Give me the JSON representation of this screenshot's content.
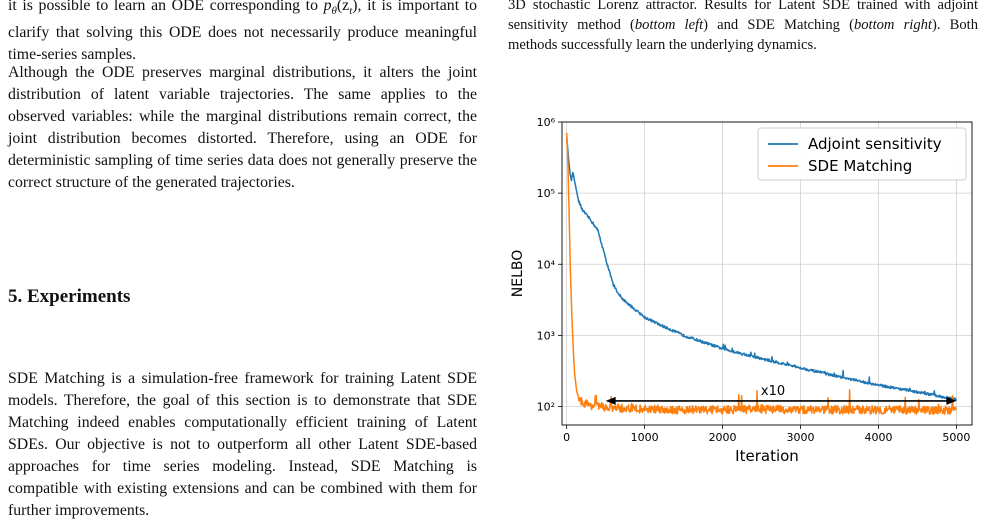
{
  "left_column": {
    "para1_prefix": "it is possible to learn an ODE corresponding to ",
    "para1_math": "p",
    "para1_math_sub": "θ",
    "para1_math_arg": "(z",
    "para1_math_arg_sub": "t",
    "para1_math_close": ")",
    "para1_suffix": ", it is important to clarify that solving this ODE does not necessarily produce meaningful time-series samples.",
    "para2": "Although the ODE preserves marginal distributions, it alters the joint distribution of latent variable trajectories. The same applies to the observed variables: while the marginal distributions remain correct, the joint distribution becomes distorted. Therefore, using an ODE for deterministic sampling of time series data does not generally preserve the correct structure of the generated trajectories.",
    "heading": "5. Experiments",
    "para3": "SDE Matching is a simulation-free framework for training Latent SDE models. Therefore, the goal of this section is to demonstrate that SDE Matching indeed enables computationally efficient training of Latent SDEs. Our objective is not to outperform all other Latent SDE-based approaches for time series modeling. Instead, SDE Matching is compatible with existing extensions and can be combined with them for further improvements."
  },
  "caption": {
    "part1": "3D stochastic Lorenz attractor. Results for Latent SDE trained with adjoint sensitivity method (",
    "em1": "bottom left",
    "part2": ") and SDE Matching (",
    "em2": "bottom right",
    "part3": "). Both methods successfully learn the underlying dynamics."
  },
  "chart_data": {
    "type": "line",
    "xlabel": "Iteration",
    "ylabel": "NELBO",
    "xlim": [
      -60,
      5200
    ],
    "ylim": [
      55,
      1000000
    ],
    "yscale": "log",
    "grid": true,
    "legend_position": "top-right",
    "x_ticks": [
      0,
      1000,
      2000,
      3000,
      4000,
      5000
    ],
    "x_tick_labels": [
      "0",
      "1000",
      "2000",
      "3000",
      "4000",
      "5000"
    ],
    "y_ticks": [
      100,
      1000,
      10000,
      100000,
      1000000
    ],
    "y_tick_labels": [
      "10²",
      "10³",
      "10⁴",
      "10⁵",
      "10⁶"
    ],
    "series": [
      {
        "name": "Adjoint sensitivity",
        "color": "#1f77b4",
        "x": [
          0,
          20,
          40,
          60,
          80,
          100,
          150,
          200,
          300,
          400,
          500,
          600,
          700,
          800,
          1000,
          1200,
          1500,
          2000,
          2500,
          3000,
          3500,
          4000,
          4500,
          5000
        ],
        "y": [
          620000,
          350000,
          200000,
          150000,
          200000,
          150000,
          80000,
          58000,
          43000,
          30000,
          12000,
          5000,
          3400,
          2700,
          1800,
          1400,
          1000,
          650,
          470,
          350,
          260,
          200,
          160,
          125
        ]
      },
      {
        "name": "SDE Matching",
        "color": "#ff7f0e",
        "x": [
          0,
          15,
          30,
          45,
          60,
          80,
          100,
          130,
          160,
          200,
          300,
          400,
          600,
          1000,
          1500,
          2000,
          2500,
          3000,
          3500,
          4000,
          4500,
          5000
        ],
        "y": [
          700000,
          300000,
          60000,
          10000,
          3000,
          800,
          300,
          160,
          130,
          115,
          105,
          100,
          95,
          92,
          90,
          90,
          92,
          90,
          90,
          90,
          88,
          88
        ]
      }
    ],
    "annotation": {
      "text": "x10",
      "arrow_from": [
        500,
        120
      ],
      "arrow_to": [
        5000,
        120
      ]
    }
  }
}
